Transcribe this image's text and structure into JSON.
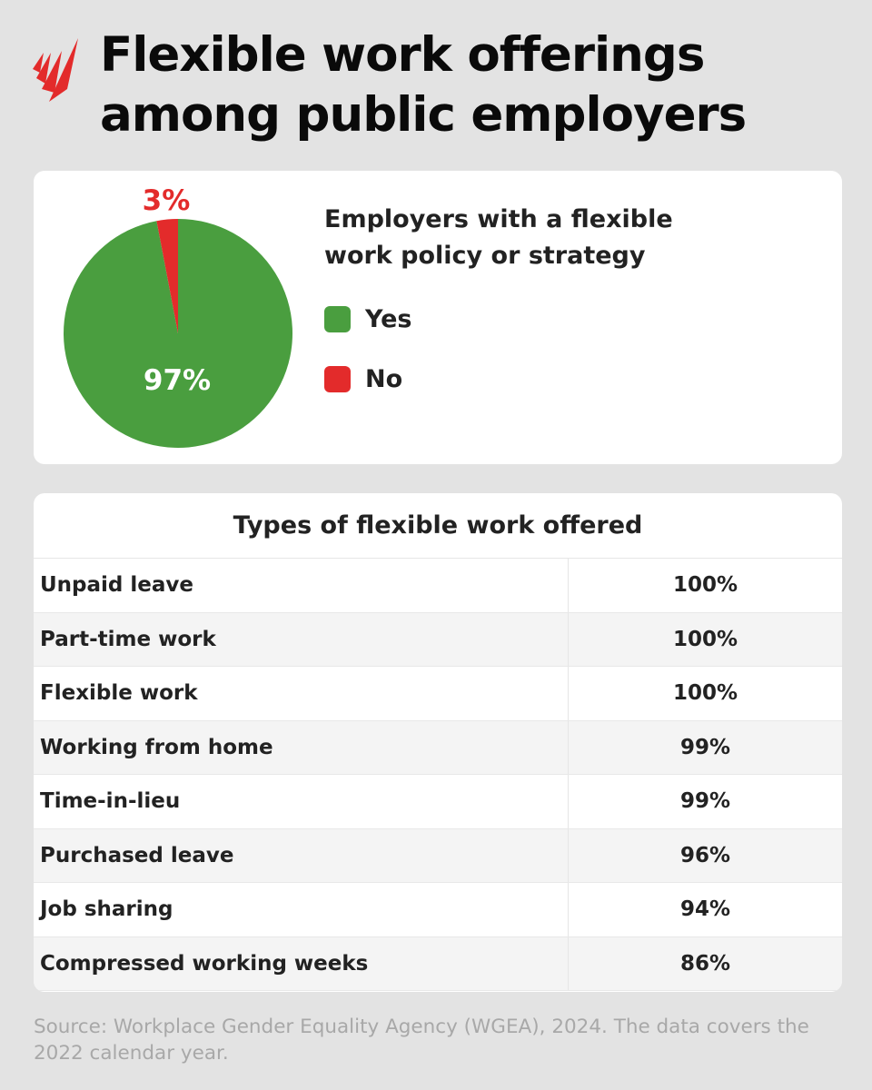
{
  "title": "Flexible work offerings among public employers",
  "colors": {
    "yes": "#4a9e3f",
    "no": "#e32b2b",
    "background": "#e3e3e3",
    "logo": "#e32b2b"
  },
  "logo_icon": "sbs-logo",
  "chart_data": {
    "type": "pie",
    "title": "Employers with a flexible work policy or strategy",
    "slices": [
      {
        "name": "Yes",
        "value": 97,
        "label": "97%"
      },
      {
        "name": "No",
        "value": 3,
        "label": "3%"
      }
    ],
    "legend": "right"
  },
  "table": {
    "title": "Types of flexible work offered",
    "rows": [
      {
        "label": "Unpaid leave",
        "value": "100%"
      },
      {
        "label": "Part-time work",
        "value": "100%"
      },
      {
        "label": "Flexible work",
        "value": "100%"
      },
      {
        "label": "Working from home",
        "value": "99%"
      },
      {
        "label": "Time-in-lieu",
        "value": "99%"
      },
      {
        "label": "Purchased leave",
        "value": "96%"
      },
      {
        "label": "Job sharing",
        "value": "94%"
      },
      {
        "label": "Compressed working weeks",
        "value": "86%"
      }
    ]
  },
  "source": "Source: Workplace Gender Equality Agency (WGEA), 2024. The data covers the 2022 calendar year."
}
